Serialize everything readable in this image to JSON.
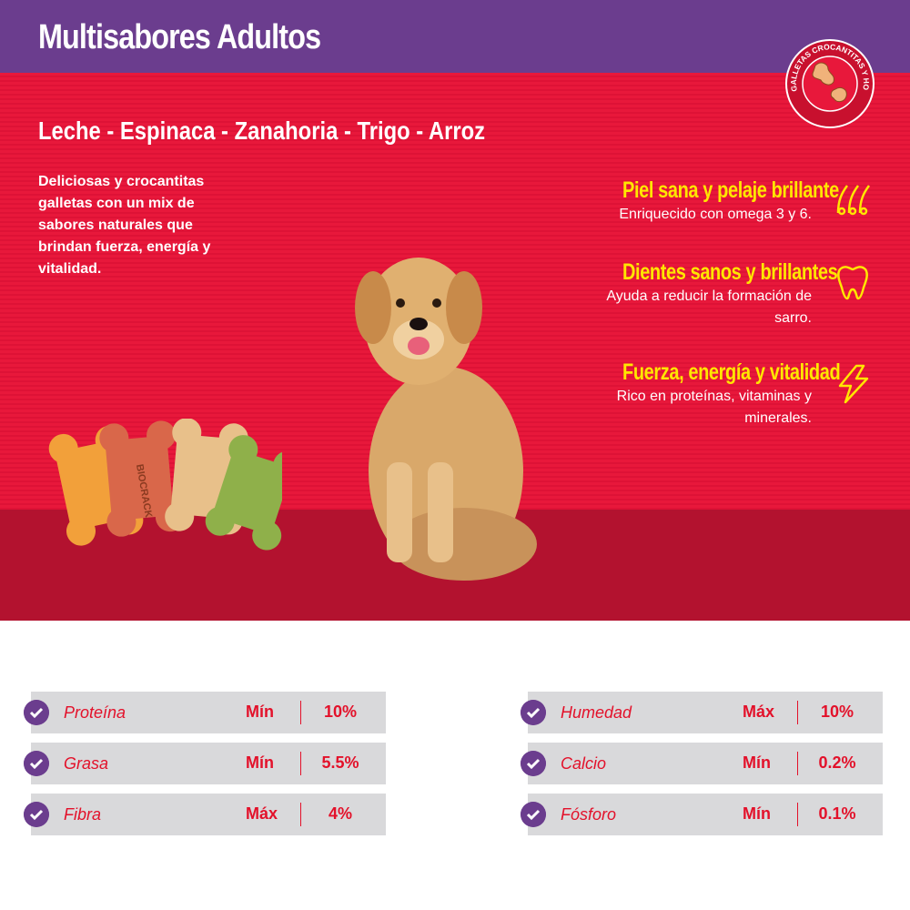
{
  "header": {
    "title": "Multisabores Adultos"
  },
  "seal": {
    "text": "GALLETAS CROCANTITAS Y HORNEADITAS"
  },
  "hero": {
    "flavors": "Leche - Espinaca - Zanahoria - Trigo - Arroz",
    "description": "Deliciosas y crocantitas galletas con un mix de sabores naturales que brindan fuerza, energía y vitalidad.",
    "benefits": [
      {
        "title": "Piel sana y pelaje brillante",
        "text": "Enriquecido con omega 3 y 6.",
        "icon": "hair-icon"
      },
      {
        "title": "Dientes sanos y brillantes",
        "text": "Ayuda a reducir la formación de sarro.",
        "icon": "tooth-icon"
      },
      {
        "title": "Fuerza, energía y vitalidad",
        "text": "Rico en proteínas, vitaminas y minerales.",
        "icon": "lightning-icon"
      }
    ],
    "bone_text": "BIOCRACK"
  },
  "nutrition": {
    "left": [
      {
        "name": "Proteína",
        "qualifier": "Mín",
        "value": "10%"
      },
      {
        "name": "Grasa",
        "qualifier": "Mín",
        "value": "5.5%"
      },
      {
        "name": "Fibra",
        "qualifier": "Máx",
        "value": "4%"
      }
    ],
    "right": [
      {
        "name": "Humedad",
        "qualifier": "Máx",
        "value": "10%"
      },
      {
        "name": "Calcio",
        "qualifier": "Mín",
        "value": "0.2%"
      },
      {
        "name": "Fósforo",
        "qualifier": "Mín",
        "value": "0.1%"
      }
    ]
  },
  "colors": {
    "purple": "#6b3d8e",
    "red": "#e8183b",
    "dark_red": "#b3122f",
    "yellow": "#ffe600",
    "row_gray": "#d9d9db"
  }
}
